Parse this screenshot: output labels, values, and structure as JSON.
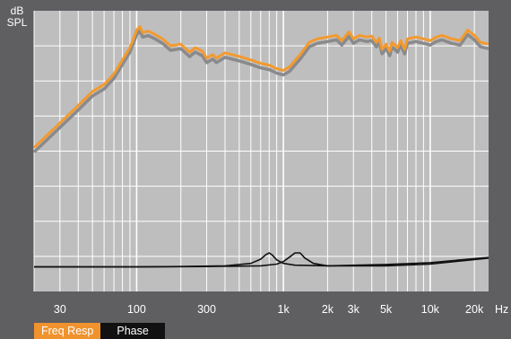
{
  "chart_data": {
    "type": "line",
    "title": "",
    "ylabel_line1": "dB",
    "ylabel_line2": "SPL",
    "xlabel": "Hz",
    "x_scale": "log",
    "xlim": [
      20,
      25000
    ],
    "ylim": [
      0,
      8
    ],
    "grid": true,
    "x_tick_labels": [
      {
        "value": 30,
        "label": "30"
      },
      {
        "value": 100,
        "label": "100"
      },
      {
        "value": 300,
        "label": "300"
      },
      {
        "value": 1000,
        "label": "1k"
      },
      {
        "value": 2000,
        "label": "2k"
      },
      {
        "value": 3000,
        "label": "3k"
      },
      {
        "value": 5000,
        "label": "5k"
      },
      {
        "value": 10000,
        "label": "10k"
      },
      {
        "value": 20000,
        "label": "20k"
      }
    ],
    "series": [
      {
        "key": "freq_resp",
        "color": "#f39a2e",
        "shadow_color": "#8a8a8d",
        "x": [
          20,
          30,
          40,
          50,
          60,
          70,
          80,
          90,
          95,
          100,
          105,
          110,
          120,
          130,
          150,
          170,
          200,
          230,
          250,
          280,
          300,
          330,
          350,
          400,
          500,
          600,
          700,
          800,
          900,
          1000,
          1100,
          1300,
          1500,
          1700,
          2000,
          2300,
          2500,
          2800,
          3000,
          3300,
          3700,
          4000,
          4300,
          4500,
          4700,
          5000,
          5300,
          5500,
          6000,
          6300,
          6700,
          7000,
          8000,
          9000,
          10000,
          11000,
          12000,
          14000,
          16000,
          18000,
          20000,
          22000,
          25000
        ],
        "y": [
          4.1,
          4.8,
          5.3,
          5.7,
          5.9,
          6.2,
          6.6,
          6.95,
          7.2,
          7.45,
          7.55,
          7.38,
          7.42,
          7.35,
          7.2,
          7.0,
          7.05,
          6.82,
          6.95,
          6.85,
          6.65,
          6.75,
          6.65,
          6.8,
          6.7,
          6.6,
          6.5,
          6.45,
          6.35,
          6.3,
          6.4,
          6.75,
          7.1,
          7.2,
          7.25,
          7.3,
          7.15,
          7.4,
          7.2,
          7.3,
          7.25,
          7.28,
          7.1,
          7.22,
          6.9,
          7.05,
          6.85,
          7.1,
          6.95,
          7.15,
          6.9,
          7.2,
          7.25,
          7.2,
          7.15,
          7.25,
          7.3,
          7.2,
          7.15,
          7.45,
          7.3,
          7.1,
          7.05
        ]
      },
      {
        "key": "phase_a",
        "color": "#111111",
        "x": [
          20,
          100,
          200,
          400,
          600,
          700,
          760,
          800,
          840,
          900,
          1000,
          1200,
          2000,
          5000,
          10000,
          25000
        ],
        "y": [
          0.7,
          0.7,
          0.71,
          0.73,
          0.8,
          0.92,
          1.05,
          1.1,
          1.04,
          0.9,
          0.8,
          0.75,
          0.73,
          0.77,
          0.82,
          0.97
        ]
      },
      {
        "key": "phase_b",
        "color": "#111111",
        "x": [
          20,
          100,
          300,
          700,
          900,
          1000,
          1100,
          1200,
          1300,
          1400,
          1600,
          2000,
          5000,
          10000,
          25000
        ],
        "y": [
          0.7,
          0.7,
          0.71,
          0.73,
          0.78,
          0.85,
          0.98,
          1.1,
          1.1,
          0.95,
          0.8,
          0.73,
          0.73,
          0.78,
          0.95
        ]
      }
    ]
  },
  "tabs": {
    "freq_resp": "Freq Resp",
    "phase": "Phase"
  }
}
